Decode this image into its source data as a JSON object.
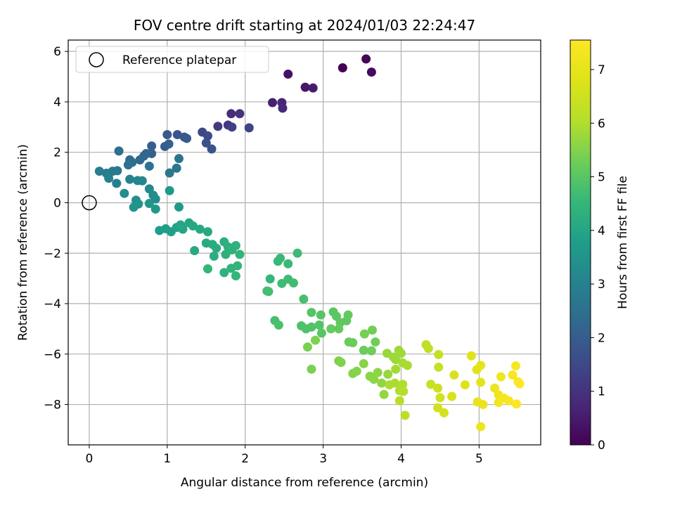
{
  "chart_data": {
    "type": "scatter",
    "title": "FOV centre drift starting at 2024/01/03 22:24:47",
    "xlabel": "Angular distance from reference (arcmin)",
    "ylabel": "Rotation from reference (arcmin)",
    "xlim": [
      -0.27,
      5.79
    ],
    "ylim": [
      -9.6,
      6.45
    ],
    "xticks": [
      0,
      1,
      2,
      3,
      4,
      5
    ],
    "yticks": [
      -8,
      -6,
      -4,
      -2,
      0,
      2,
      4,
      6
    ],
    "grid": true,
    "legend": {
      "position": "top-left",
      "entries": [
        "Reference platepar"
      ]
    },
    "reference_point": {
      "x": 0,
      "y": 0
    },
    "colorbar": {
      "label": "Hours from first FF file",
      "range": [
        0,
        7.55
      ],
      "ticks": [
        0,
        1,
        2,
        3,
        4,
        5,
        6,
        7
      ],
      "colormap": "viridis"
    },
    "points": [
      [
        3.25,
        5.35,
        0.0
      ],
      [
        3.55,
        5.7,
        0.1
      ],
      [
        3.62,
        5.18,
        0.2
      ],
      [
        2.55,
        5.1,
        0.3
      ],
      [
        2.77,
        4.58,
        0.4
      ],
      [
        2.87,
        4.55,
        0.5
      ],
      [
        2.35,
        3.97,
        0.6
      ],
      [
        2.47,
        3.97,
        0.7
      ],
      [
        2.48,
        3.75,
        0.8
      ],
      [
        1.82,
        3.53,
        0.9
      ],
      [
        1.93,
        3.53,
        1.0
      ],
      [
        1.78,
        3.08,
        1.1
      ],
      [
        1.65,
        3.03,
        1.2
      ],
      [
        1.83,
        3.0,
        1.3
      ],
      [
        2.05,
        2.97,
        1.4
      ],
      [
        1.45,
        2.8,
        1.5
      ],
      [
        1.52,
        2.65,
        1.6
      ],
      [
        1.5,
        2.37,
        1.7
      ],
      [
        1.57,
        2.13,
        1.75
      ],
      [
        1.13,
        2.7,
        1.8
      ],
      [
        1.22,
        2.6,
        1.85
      ],
      [
        1.0,
        2.7,
        1.9
      ],
      [
        1.25,
        2.55,
        1.95
      ],
      [
        0.97,
        2.23,
        2.0
      ],
      [
        0.8,
        2.25,
        2.05
      ],
      [
        1.02,
        2.33,
        2.1
      ],
      [
        0.8,
        1.95,
        2.15
      ],
      [
        0.73,
        1.95,
        2.2
      ],
      [
        0.7,
        1.85,
        2.25
      ],
      [
        0.65,
        1.7,
        2.3
      ],
      [
        0.52,
        1.7,
        2.35
      ],
      [
        0.55,
        1.6,
        2.4
      ],
      [
        0.38,
        2.05,
        2.45
      ],
      [
        0.5,
        1.5,
        2.5
      ],
      [
        0.77,
        1.45,
        2.55
      ],
      [
        1.15,
        1.75,
        2.6
      ],
      [
        1.12,
        1.37,
        2.65
      ],
      [
        1.03,
        1.18,
        2.7
      ],
      [
        0.3,
        1.25,
        2.75
      ],
      [
        0.36,
        1.27,
        2.8
      ],
      [
        0.22,
        1.17,
        2.85
      ],
      [
        0.13,
        1.25,
        2.9
      ],
      [
        0.25,
        0.97,
        2.95
      ],
      [
        0.35,
        0.77,
        3.0
      ],
      [
        0.52,
        0.93,
        3.05
      ],
      [
        0.62,
        0.88,
        3.1
      ],
      [
        0.68,
        0.87,
        3.15
      ],
      [
        0.77,
        0.55,
        3.2
      ],
      [
        0.82,
        0.3,
        3.25
      ],
      [
        0.85,
        0.15,
        3.3
      ],
      [
        0.45,
        0.37,
        3.35
      ],
      [
        0.6,
        0.1,
        3.4
      ],
      [
        0.63,
        -0.05,
        3.45
      ],
      [
        0.57,
        -0.18,
        3.5
      ],
      [
        0.77,
        -0.03,
        3.55
      ],
      [
        0.85,
        -0.25,
        3.6
      ],
      [
        1.03,
        0.48,
        3.65
      ],
      [
        1.15,
        -0.17,
        3.7
      ],
      [
        0.9,
        -1.1,
        3.75
      ],
      [
        0.98,
        -1.03,
        3.8
      ],
      [
        1.05,
        -1.15,
        3.85
      ],
      [
        1.12,
        -0.98,
        3.9
      ],
      [
        1.2,
        -1.05,
        3.95
      ],
      [
        1.28,
        -0.8,
        4.0
      ],
      [
        1.17,
        -0.88,
        4.02
      ],
      [
        1.33,
        -0.92,
        4.05
      ],
      [
        1.42,
        -1.05,
        4.08
      ],
      [
        1.35,
        -1.9,
        4.1
      ],
      [
        1.52,
        -1.15,
        4.12
      ],
      [
        1.5,
        -1.6,
        4.15
      ],
      [
        1.58,
        -1.65,
        4.18
      ],
      [
        1.63,
        -1.8,
        4.2
      ],
      [
        1.6,
        -2.12,
        4.22
      ],
      [
        1.73,
        -1.55,
        4.25
      ],
      [
        1.78,
        -1.75,
        4.28
      ],
      [
        1.75,
        -2.05,
        4.3
      ],
      [
        1.83,
        -1.87,
        4.32
      ],
      [
        1.88,
        -1.7,
        4.35
      ],
      [
        1.73,
        -2.77,
        4.38
      ],
      [
        1.82,
        -2.6,
        4.4
      ],
      [
        1.9,
        -2.5,
        4.42
      ],
      [
        1.93,
        -2.05,
        4.45
      ],
      [
        1.88,
        -2.9,
        4.48
      ],
      [
        1.52,
        -2.62,
        4.5
      ],
      [
        2.32,
        -3.02,
        4.52
      ],
      [
        2.42,
        -2.32,
        4.55
      ],
      [
        2.45,
        -2.2,
        4.58
      ],
      [
        2.55,
        -2.42,
        4.6
      ],
      [
        2.67,
        -2.0,
        4.62
      ],
      [
        2.47,
        -3.2,
        4.65
      ],
      [
        2.55,
        -3.03,
        4.68
      ],
      [
        2.62,
        -3.18,
        4.7
      ],
      [
        2.28,
        -3.5,
        4.72
      ],
      [
        2.3,
        -3.52,
        4.75
      ],
      [
        2.75,
        -3.82,
        4.78
      ],
      [
        2.38,
        -4.67,
        4.8
      ],
      [
        2.43,
        -4.85,
        4.82
      ],
      [
        2.72,
        -4.88,
        4.85
      ],
      [
        2.78,
        -5.0,
        4.88
      ],
      [
        2.85,
        -4.93,
        4.9
      ],
      [
        2.95,
        -4.85,
        4.92
      ],
      [
        2.85,
        -4.35,
        4.95
      ],
      [
        2.97,
        -4.45,
        4.97
      ],
      [
        2.98,
        -5.17,
        5.0
      ],
      [
        3.13,
        -4.33,
        5.02
      ],
      [
        3.17,
        -4.5,
        5.05
      ],
      [
        3.22,
        -4.75,
        5.08
      ],
      [
        3.3,
        -4.68,
        5.1
      ],
      [
        3.32,
        -4.45,
        5.12
      ],
      [
        3.2,
        -5.0,
        5.15
      ],
      [
        3.1,
        -5.0,
        5.18
      ],
      [
        3.33,
        -5.52,
        5.2
      ],
      [
        3.38,
        -5.55,
        5.22
      ],
      [
        3.52,
        -5.85,
        5.25
      ],
      [
        3.62,
        -5.87,
        5.28
      ],
      [
        3.67,
        -5.52,
        5.3
      ],
      [
        3.63,
        -5.05,
        5.32
      ],
      [
        3.53,
        -5.2,
        5.35
      ],
      [
        2.8,
        -5.72,
        5.38
      ],
      [
        2.85,
        -6.6,
        5.4
      ],
      [
        2.9,
        -5.45,
        5.42
      ],
      [
        3.2,
        -6.27,
        5.45
      ],
      [
        3.23,
        -6.33,
        5.48
      ],
      [
        3.38,
        -6.77,
        5.5
      ],
      [
        3.43,
        -6.68,
        5.52
      ],
      [
        3.52,
        -6.38,
        5.55
      ],
      [
        3.6,
        -6.88,
        5.58
      ],
      [
        3.65,
        -7.0,
        5.6
      ],
      [
        3.7,
        -6.73,
        5.62
      ],
      [
        3.75,
        -7.15,
        5.65
      ],
      [
        3.78,
        -7.6,
        5.68
      ],
      [
        3.83,
        -6.8,
        5.7
      ],
      [
        3.82,
        -5.97,
        5.72
      ],
      [
        3.9,
        -6.12,
        5.75
      ],
      [
        3.93,
        -6.22,
        5.78
      ],
      [
        3.97,
        -5.85,
        5.8
      ],
      [
        4.0,
        -5.97,
        5.82
      ],
      [
        3.93,
        -6.6,
        5.85
      ],
      [
        4.02,
        -6.35,
        5.88
      ],
      [
        4.08,
        -6.45,
        5.9
      ],
      [
        3.85,
        -7.22,
        5.93
      ],
      [
        3.92,
        -7.15,
        5.95
      ],
      [
        3.98,
        -7.45,
        5.98
      ],
      [
        4.02,
        -7.2,
        6.0
      ],
      [
        4.03,
        -7.48,
        6.05
      ],
      [
        3.98,
        -7.85,
        6.1
      ],
      [
        4.05,
        -8.43,
        6.15
      ],
      [
        4.35,
        -5.78,
        6.2
      ],
      [
        4.32,
        -5.63,
        6.25
      ],
      [
        4.48,
        -6.02,
        6.3
      ],
      [
        4.48,
        -6.52,
        6.35
      ],
      [
        4.38,
        -7.2,
        6.4
      ],
      [
        4.47,
        -7.35,
        6.45
      ],
      [
        4.5,
        -7.73,
        6.5
      ],
      [
        4.47,
        -8.13,
        6.55
      ],
      [
        4.55,
        -8.33,
        6.6
      ],
      [
        4.68,
        -6.83,
        6.65
      ],
      [
        4.65,
        -7.68,
        6.7
      ],
      [
        4.82,
        -7.22,
        6.75
      ],
      [
        4.9,
        -6.07,
        6.8
      ],
      [
        4.97,
        -6.62,
        6.85
      ],
      [
        5.02,
        -6.45,
        6.9
      ],
      [
        5.02,
        -7.12,
        6.95
      ],
      [
        4.98,
        -7.9,
        7.0
      ],
      [
        5.05,
        -8.0,
        7.05
      ],
      [
        5.02,
        -8.88,
        7.1
      ],
      [
        5.2,
        -7.35,
        7.15
      ],
      [
        5.25,
        -7.62,
        7.2
      ],
      [
        5.28,
        -6.9,
        7.25
      ],
      [
        5.25,
        -7.92,
        7.3
      ],
      [
        5.32,
        -7.75,
        7.35
      ],
      [
        5.38,
        -7.85,
        7.4
      ],
      [
        5.43,
        -6.83,
        7.42
      ],
      [
        5.47,
        -6.47,
        7.45
      ],
      [
        5.5,
        -7.1,
        7.48
      ],
      [
        5.48,
        -7.98,
        7.5
      ],
      [
        5.52,
        -7.18,
        7.52
      ]
    ]
  }
}
